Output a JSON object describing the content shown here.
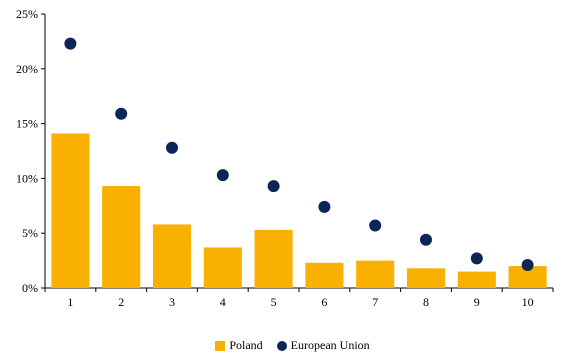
{
  "chart_data": {
    "type": "bar",
    "categories": [
      "1",
      "2",
      "3",
      "4",
      "5",
      "6",
      "7",
      "8",
      "9",
      "10"
    ],
    "series": [
      {
        "name": "Poland",
        "kind": "bar",
        "color": "#F9B000",
        "values": [
          14.1,
          9.3,
          5.8,
          3.7,
          5.3,
          2.3,
          2.5,
          1.8,
          1.5,
          2.0
        ]
      },
      {
        "name": "European Union",
        "kind": "scatter",
        "color": "#0B2559",
        "values": [
          22.3,
          15.9,
          12.8,
          10.3,
          9.3,
          7.4,
          5.7,
          4.4,
          2.7,
          2.1
        ]
      }
    ],
    "yticks": [
      "0%",
      "5%",
      "10%",
      "15%",
      "20%",
      "25%"
    ],
    "ylim": [
      0,
      25
    ],
    "legend_position": "bottom",
    "grid": false
  }
}
